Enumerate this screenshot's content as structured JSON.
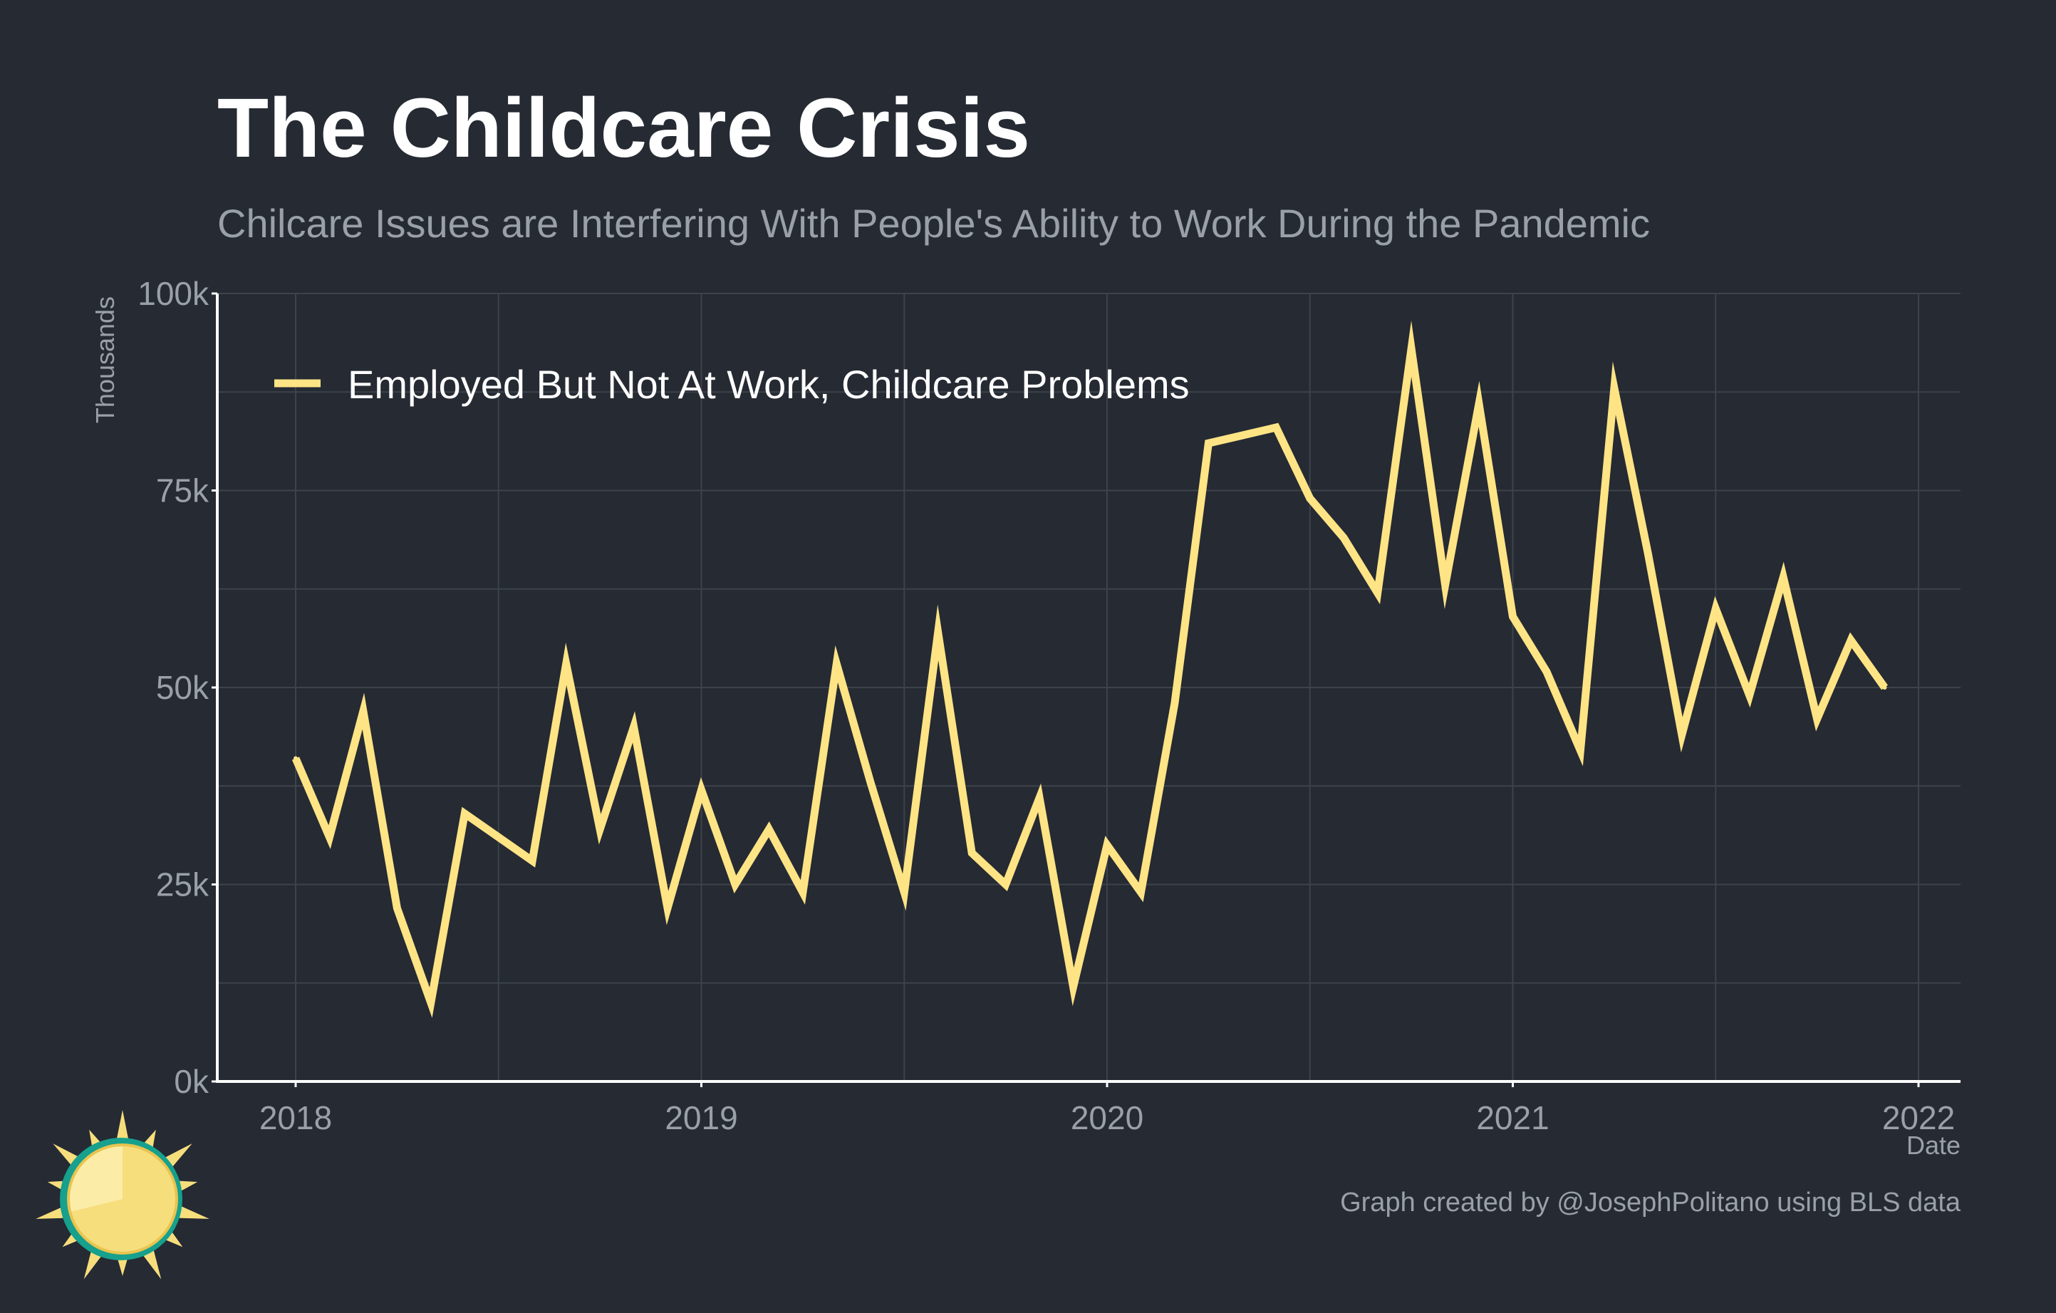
{
  "title": "The Childcare Crisis",
  "subtitle": "Chilcare Issues are Interfering With People's Ability to Work During the Pandemic",
  "caption": "Graph created by @JosephPolitano using BLS data",
  "colors": {
    "background": "#252a33",
    "grid": "#3d424b",
    "axis": "#ffffff",
    "line": "#ffe485",
    "logo_sun": "#f7de7c",
    "logo_ring": "#16a08d"
  },
  "chart_data": {
    "type": "line",
    "xlabel": "Date",
    "ylabel": "Thousands",
    "x_ticks": [
      "2018",
      "2019",
      "2020",
      "2021",
      "2022"
    ],
    "y_ticks": [
      "0k",
      "25k",
      "50k",
      "75k",
      "100k"
    ],
    "xlim": [
      "2017-10",
      "2022-03"
    ],
    "ylim": [
      0,
      100
    ],
    "grid": true,
    "legend_position": "top-left",
    "series": [
      {
        "name": "Employed But Not At Work, Childcare Problems",
        "x": [
          "2018-01",
          "2018-02",
          "2018-03",
          "2018-04",
          "2018-05",
          "2018-06",
          "2018-07",
          "2018-08",
          "2018-09",
          "2018-10",
          "2018-11",
          "2018-12",
          "2019-01",
          "2019-02",
          "2019-03",
          "2019-04",
          "2019-05",
          "2019-06",
          "2019-07",
          "2019-08",
          "2019-09",
          "2019-10",
          "2019-11",
          "2019-12",
          "2020-01",
          "2020-02",
          "2020-03",
          "2020-04",
          "2020-05",
          "2020-06",
          "2020-07",
          "2020-08",
          "2020-09",
          "2020-10",
          "2020-11",
          "2020-12",
          "2021-01",
          "2021-02",
          "2021-03",
          "2021-04",
          "2021-05",
          "2021-06",
          "2021-07",
          "2021-08",
          "2021-09",
          "2021-10",
          "2021-11",
          "2021-12"
        ],
        "values": [
          41,
          31,
          47,
          22,
          10,
          34,
          31,
          28,
          53,
          32,
          45,
          22,
          37,
          25,
          32,
          24,
          53,
          38,
          24,
          57,
          29,
          25,
          36,
          12,
          30,
          24,
          48,
          81,
          82,
          83,
          74,
          69,
          62,
          93,
          63,
          86,
          59,
          52,
          42,
          88,
          67,
          44,
          60,
          49,
          64,
          46,
          56,
          50
        ]
      }
    ]
  }
}
